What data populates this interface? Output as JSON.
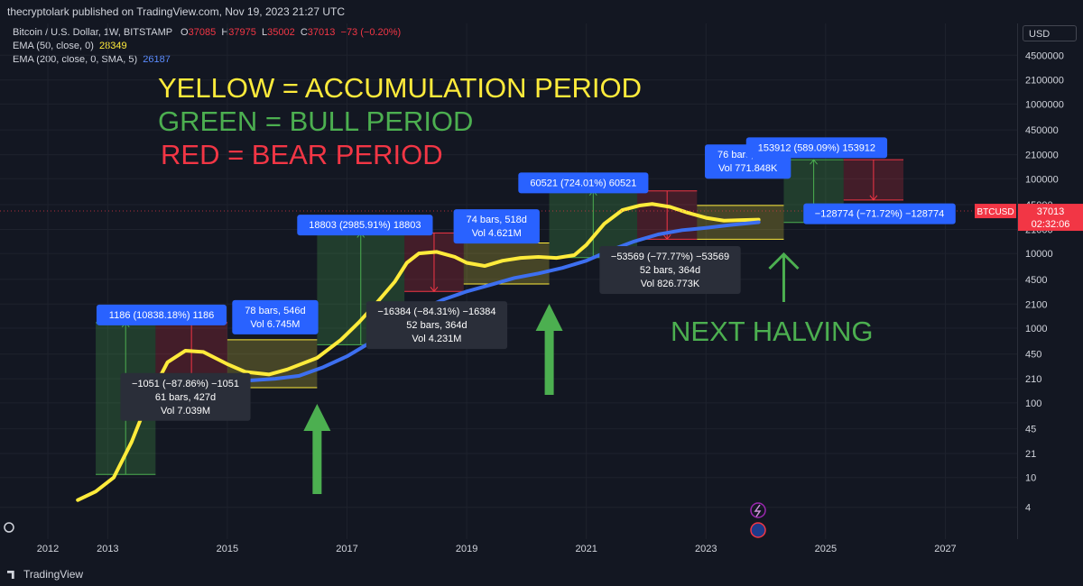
{
  "header": {
    "published_by": "thecryptolark published on TradingView.com, Nov 19, 2023 21:27 UTC"
  },
  "legend": {
    "symbol_line": "Bitcoin / U.S. Dollar, 1W, BITSTAMP",
    "ohlc": {
      "o_label": "O",
      "o_value": "37085",
      "h_label": "H",
      "h_value": "37975",
      "l_label": "L",
      "l_value": "35002",
      "c_label": "C",
      "c_value": "37013",
      "change": "−73 (−0.20%)"
    },
    "ema50_label": "EMA (50, close, 0)",
    "ema50_value": "28349",
    "ema200_label": "EMA (200, close, 0, SMA, 5)",
    "ema200_value": "26187"
  },
  "currency": "USD",
  "footer": {
    "brand": "TradingView"
  },
  "chart_data": {
    "type": "line",
    "title": "",
    "yscale": "log",
    "ylim": [
      1.5,
      12000000
    ],
    "xlim": [
      2011.2,
      2028.2
    ],
    "y_ticks": [
      "4500000",
      "2100000",
      "1000000",
      "450000",
      "210000",
      "100000",
      "45000",
      "21000",
      "10000",
      "4500",
      "2100",
      "1000",
      "450",
      "210",
      "100",
      "45",
      "21",
      "10",
      "4"
    ],
    "y_tick_values": [
      4500000,
      2100000,
      1000000,
      450000,
      210000,
      100000,
      45000,
      21000,
      10000,
      4500,
      2100,
      1000,
      450,
      210,
      100,
      45,
      21,
      10,
      4
    ],
    "x_ticks": [
      "2012",
      "2013",
      "2015",
      "2017",
      "2019",
      "2021",
      "2023",
      "2025",
      "2027"
    ],
    "x_tick_values": [
      2012,
      2013,
      2015,
      2017,
      2019,
      2021,
      2023,
      2025,
      2027
    ],
    "price_label": {
      "symbol": "BTCUSD",
      "value": "37013",
      "countdown": "02:32:06",
      "y": 37013
    },
    "series": [
      {
        "color": "#ffeb3b",
        "x": [
          2012.5,
          2012.8,
          2013.1,
          2013.4,
          2013.7,
          2014.0,
          2014.3,
          2014.6,
          2015.0,
          2015.3,
          2015.7,
          2016.0,
          2016.5,
          2016.9,
          2017.2,
          2017.5,
          2017.8,
          2018.0,
          2018.2,
          2018.5,
          2018.8,
          2019.0,
          2019.3,
          2019.6,
          2019.9,
          2020.2,
          2020.5,
          2020.8,
          2021.0,
          2021.3,
          2021.6,
          2021.9,
          2022.1,
          2022.4,
          2022.7,
          2023.0,
          2023.3,
          2023.6,
          2023.88
        ],
        "y": [
          5,
          6.5,
          10,
          30,
          120,
          350,
          500,
          480,
          330,
          260,
          240,
          280,
          400,
          700,
          1200,
          2200,
          4200,
          7500,
          10000,
          10500,
          9000,
          7500,
          6800,
          8000,
          8700,
          9000,
          8700,
          9500,
          13000,
          25000,
          38000,
          44000,
          46000,
          42000,
          35000,
          30000,
          27500,
          28000,
          28349
        ]
      },
      {
        "color": "#3d6ff0",
        "x": [
          2015.4,
          2015.8,
          2016.2,
          2016.6,
          2017.0,
          2017.4,
          2017.8,
          2018.2,
          2018.6,
          2019.0,
          2019.4,
          2019.8,
          2020.2,
          2020.6,
          2021.0,
          2021.4,
          2021.8,
          2022.2,
          2022.6,
          2023.0,
          2023.4,
          2023.88
        ],
        "y": [
          200,
          210,
          230,
          300,
          420,
          650,
          1100,
          1700,
          2400,
          3100,
          3800,
          4700,
          5400,
          6400,
          8000,
          11000,
          14500,
          18000,
          20500,
          22000,
          24000,
          26187
        ]
      }
    ],
    "colored_periods": [
      {
        "kind": "bull",
        "x0": 2012.8,
        "x1": 2013.8,
        "y0": 11,
        "y1": 1186,
        "arrow": "up"
      },
      {
        "kind": "bear",
        "x0": 2013.8,
        "x1": 2015.0,
        "y0": 150,
        "y1": 1186,
        "arrow": "down"
      },
      {
        "kind": "accumulation",
        "x0": 2015.0,
        "x1": 2016.5,
        "y0": 160,
        "y1": 700
      },
      {
        "kind": "bull",
        "x0": 2016.5,
        "x1": 2017.96,
        "y0": 600,
        "y1": 18803,
        "arrow": "up"
      },
      {
        "kind": "bear",
        "x0": 2017.96,
        "x1": 2018.95,
        "y0": 3100,
        "y1": 18803,
        "arrow": "down"
      },
      {
        "kind": "accumulation",
        "x0": 2018.95,
        "x1": 2020.38,
        "y0": 3900,
        "y1": 13800
      },
      {
        "kind": "bull",
        "x0": 2020.38,
        "x1": 2021.85,
        "y0": 8800,
        "y1": 68800,
        "arrow": "up"
      },
      {
        "kind": "bear",
        "x0": 2021.85,
        "x1": 2022.85,
        "y0": 15500,
        "y1": 68800,
        "arrow": "down"
      },
      {
        "kind": "accumulation",
        "x0": 2022.85,
        "x1": 2024.3,
        "y0": 15500,
        "y1": 44000
      },
      {
        "kind": "bull",
        "x0": 2024.3,
        "x1": 2025.3,
        "y0": 26000,
        "y1": 180000,
        "arrow": "up"
      },
      {
        "kind": "bear",
        "x0": 2025.3,
        "x1": 2026.3,
        "y0": 52000,
        "y1": 180000,
        "arrow": "down"
      }
    ],
    "measure_labels": [
      {
        "style": "blue",
        "lines": [
          "1186 (10838.18%) 1186"
        ],
        "anchor_x": 2013.9,
        "anchor_y": 1500
      },
      {
        "style": "dark",
        "lines": [
          "−1051 (−87.86%) −1051",
          "61 bars, 427d",
          "Vol 7.039M"
        ],
        "anchor_x": 2014.3,
        "anchor_y": 120
      },
      {
        "style": "blue",
        "lines": [
          "78 bars, 546d",
          "Vol 6.745M"
        ],
        "anchor_x": 2015.8,
        "anchor_y": 1400
      },
      {
        "style": "blue",
        "lines": [
          "18803 (2985.91%) 18803"
        ],
        "anchor_x": 2017.3,
        "anchor_y": 24000
      },
      {
        "style": "dark",
        "lines": [
          "−16384 (−84.31%) −16384",
          "52 bars, 364d",
          "Vol 4.231M"
        ],
        "anchor_x": 2018.5,
        "anchor_y": 1100
      },
      {
        "style": "blue",
        "lines": [
          "74 bars, 518d",
          "Vol 4.621M"
        ],
        "anchor_x": 2019.5,
        "anchor_y": 23000
      },
      {
        "style": "blue",
        "lines": [
          "60521 (724.01%) 60521"
        ],
        "anchor_x": 2020.95,
        "anchor_y": 88000
      },
      {
        "style": "dark",
        "lines": [
          "−53569 (−77.77%) −53569",
          "52 bars, 364d",
          "Vol 826.773K"
        ],
        "anchor_x": 2022.4,
        "anchor_y": 6000
      },
      {
        "style": "blue",
        "lines": [
          "76 bars, 532d",
          "Vol 771.848K"
        ],
        "anchor_x": 2023.7,
        "anchor_y": 170000
      },
      {
        "style": "blue",
        "lines": [
          "153912 (589.09%) 153912"
        ],
        "anchor_x": 2024.85,
        "anchor_y": 260000
      },
      {
        "style": "blue",
        "lines": [
          "−128774 (−71.72%) −128774"
        ],
        "anchor_x": 2025.9,
        "anchor_y": 34000
      }
    ],
    "annotations": [
      {
        "text": "YELLOW = ACCUMULATION PERIOD",
        "color": "#ffeb3b"
      },
      {
        "text": "GREEN = BULL PERIOD",
        "color": "#4caf50"
      },
      {
        "text": "RED = BEAR PERIOD",
        "color": "#f23645"
      },
      {
        "text": "NEXT HALVING",
        "color": "#4caf50"
      }
    ],
    "halving_arrows": [
      2016.5,
      2020.38,
      2024.3
    ],
    "colors": {
      "bull_fill": "rgba(76,175,80,0.25)",
      "bear_fill": "rgba(242,54,69,0.22)",
      "acc_fill": "rgba(255,235,59,0.22)",
      "bull_line": "#4caf50",
      "bear_line": "#f23645",
      "acc_line": "#ffeb3b",
      "blue_label": "#2962ff",
      "dark_label": "#2a2e39",
      "arrow_green": "#4caf50"
    }
  }
}
